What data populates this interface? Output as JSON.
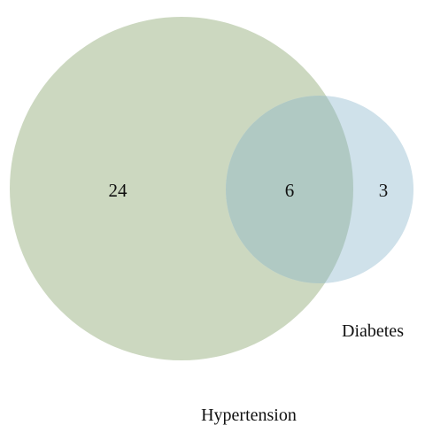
{
  "venn": {
    "sets": [
      {
        "label": "Hypertension",
        "color": "#ccd8c0"
      },
      {
        "label": "Diabetes",
        "color": "#cfe1ea"
      }
    ],
    "regions": {
      "hypertension_only": "24",
      "both": "6",
      "diabetes_only": "3"
    },
    "overlap_color": "#b0c9c3"
  }
}
